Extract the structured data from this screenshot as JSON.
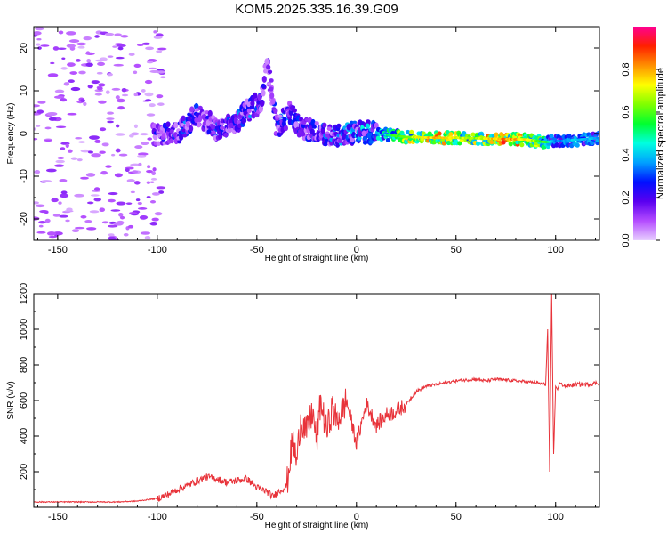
{
  "chart_data": [
    {
      "type": "heatmap",
      "title": "KOM5.2025.335.16.39.G09",
      "xlabel": "Height of straight line (km)",
      "ylabel": "Frequency (Hz)",
      "xlim": [
        -162,
        122
      ],
      "ylim": [
        -25,
        25
      ],
      "x_ticks": [
        "-150",
        "-100",
        "-50",
        "0",
        "50",
        "100"
      ],
      "x_tick_values": [
        -150,
        -100,
        -50,
        0,
        50,
        100
      ],
      "y_ticks": [
        "20",
        "10",
        "0",
        "-10",
        "-20"
      ],
      "y_tick_values": [
        20,
        10,
        0,
        -10,
        -20
      ],
      "ridge": [
        {
          "x": -100,
          "y": -0.5,
          "a": 0.25
        },
        {
          "x": -90,
          "y": 0.0,
          "a": 0.3
        },
        {
          "x": -85,
          "y": 2.0,
          "a": 0.35
        },
        {
          "x": -80,
          "y": 4.5,
          "a": 0.3
        },
        {
          "x": -75,
          "y": 3.0,
          "a": 0.25
        },
        {
          "x": -70,
          "y": 0.5,
          "a": 0.3
        },
        {
          "x": -62,
          "y": 2.5,
          "a": 0.3
        },
        {
          "x": -55,
          "y": 5.0,
          "a": 0.35
        },
        {
          "x": -48,
          "y": 7.5,
          "a": 0.3
        },
        {
          "x": -45,
          "y": 15.5,
          "a": 0.2
        },
        {
          "x": -40,
          "y": 1.5,
          "a": 0.3
        },
        {
          "x": -33,
          "y": 5.0,
          "a": 0.35
        },
        {
          "x": -30,
          "y": 2.0,
          "a": 0.3
        },
        {
          "x": -20,
          "y": 0.0,
          "a": 0.3
        },
        {
          "x": -10,
          "y": -0.5,
          "a": 0.35
        },
        {
          "x": 0,
          "y": 0.5,
          "a": 0.4
        },
        {
          "x": 10,
          "y": 0.0,
          "a": 0.45
        },
        {
          "x": 25,
          "y": -0.8,
          "a": 0.7
        },
        {
          "x": 40,
          "y": -1.0,
          "a": 0.85
        },
        {
          "x": 50,
          "y": -1.0,
          "a": 0.75
        },
        {
          "x": 60,
          "y": -1.1,
          "a": 0.7
        },
        {
          "x": 75,
          "y": -1.3,
          "a": 0.9
        },
        {
          "x": 85,
          "y": -1.4,
          "a": 0.8
        },
        {
          "x": 95,
          "y": -2.0,
          "a": 0.6
        },
        {
          "x": 100,
          "y": -1.8,
          "a": 0.35
        },
        {
          "x": 110,
          "y": -1.5,
          "a": 0.45
        },
        {
          "x": 122,
          "y": -1.0,
          "a": 0.4
        }
      ],
      "colorbar": {
        "label": "Normalized spectral amplitude",
        "range": [
          0,
          1
        ],
        "ticks": [
          "0.0",
          "0.2",
          "0.4",
          "0.6",
          "0.8"
        ],
        "tick_values": [
          0.0,
          0.2,
          0.4,
          0.6,
          0.8
        ],
        "colors": [
          "#e8d0ff",
          "#b44cff",
          "#5a00f0",
          "#0010ff",
          "#00a0ff",
          "#00ffe0",
          "#00ff30",
          "#80ff00",
          "#ffff00",
          "#ff9000",
          "#ff2000",
          "#ff0090"
        ]
      }
    },
    {
      "type": "line",
      "xlabel": "Height of straight line (km)",
      "ylabel": "SNR (v/v)",
      "xlim": [
        -162,
        122
      ],
      "ylim": [
        0,
        1200
      ],
      "x_ticks": [
        "-150",
        "-100",
        "-50",
        "0",
        "50",
        "100"
      ],
      "x_tick_values": [
        -150,
        -100,
        -50,
        0,
        50,
        100
      ],
      "y_ticks": [
        "200",
        "400",
        "600",
        "800",
        "1000",
        "1200"
      ],
      "y_tick_values": [
        200,
        400,
        600,
        800,
        1000,
        1200
      ],
      "line_color": "#e8333a",
      "series": [
        {
          "name": "SNR",
          "x": [
            -162,
            -140,
            -120,
            -110,
            -100,
            -95,
            -90,
            -85,
            -80,
            -75,
            -70,
            -65,
            -60,
            -55,
            -50,
            -45,
            -42,
            -40,
            -35,
            -32,
            -30,
            -28,
            -25,
            -22,
            -20,
            -18,
            -15,
            -12,
            -10,
            -5,
            0,
            5,
            10,
            15,
            20,
            25,
            30,
            35,
            40,
            50,
            60,
            65,
            70,
            80,
            90,
            95,
            96,
            97,
            98,
            99,
            100,
            101,
            102,
            105,
            110,
            115,
            122
          ],
          "y": [
            30,
            30,
            30,
            35,
            50,
            70,
            100,
            120,
            150,
            170,
            160,
            140,
            150,
            160,
            110,
            90,
            60,
            80,
            120,
            380,
            250,
            500,
            420,
            540,
            360,
            600,
            420,
            560,
            480,
            600,
            360,
            580,
            460,
            520,
            540,
            580,
            650,
            680,
            690,
            710,
            720,
            710,
            720,
            710,
            700,
            690,
            1000,
            200,
            1200,
            300,
            680,
            660,
            700,
            680,
            690,
            690,
            700
          ]
        }
      ]
    }
  ]
}
